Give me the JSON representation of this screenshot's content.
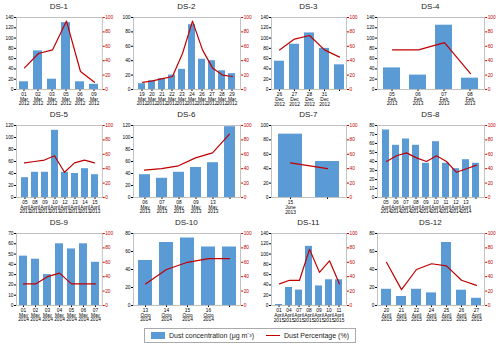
{
  "chart_data": [
    {
      "type": "bar",
      "title": "DS-1",
      "categories": [
        "01\nMar\n2012",
        "02\nMar\n2012",
        "03\nMar\n2012",
        "05\nMar\n2012",
        "06\nMar\n2012",
        "09\nMar\n2012"
      ],
      "series": [
        {
          "name": "Dust concentration (μg m⁻³)",
          "type": "bar",
          "color": "#5b9bd5",
          "values": [
            15,
            75,
            20,
            130,
            15,
            10
          ]
        },
        {
          "name": "Dust Percentage (%)",
          "type": "line",
          "color": "#c00000",
          "axis": "y2",
          "values": [
            30,
            50,
            55,
            95,
            25,
            10
          ]
        }
      ],
      "ylim": [
        0,
        140
      ],
      "yticks": [
        0,
        20,
        40,
        60,
        80,
        100,
        120,
        140
      ],
      "y2lim": [
        0,
        100
      ],
      "y2ticks": [
        0,
        20,
        40,
        60,
        80,
        100
      ],
      "grid": false,
      "legend": "bottom"
    },
    {
      "type": "bar",
      "title": "DS-2",
      "categories": [
        "19\nMar\n2012",
        "20\nMar\n2012",
        "21\nMar\n2012",
        "22\nMar\n2012",
        "23\nMar\n2012",
        "24\nMar\n2012",
        "26\nMar\n2012",
        "27\nMar\n2012",
        "28\nMar\n2012",
        "29\nMar\n2012"
      ],
      "series": [
        {
          "name": "Dust concentration (μg m⁻³)",
          "type": "bar",
          "color": "#5b9bd5",
          "values": [
            8,
            12,
            15,
            20,
            28,
            90,
            42,
            40,
            26,
            22
          ]
        },
        {
          "name": "Dust Percentage (%)",
          "type": "line",
          "color": "#c00000",
          "axis": "y2",
          "values": [
            10,
            12,
            15,
            18,
            50,
            95,
            55,
            30,
            20,
            18
          ]
        }
      ],
      "ylim": [
        0,
        100
      ],
      "yticks": [
        0,
        20,
        40,
        60,
        80,
        100
      ],
      "y2lim": [
        0,
        100
      ],
      "y2ticks": [
        0,
        20,
        40,
        60,
        80,
        100
      ],
      "grid": false,
      "legend": "bottom"
    },
    {
      "type": "bar",
      "title": "DS-3",
      "categories": [
        "26\nDec\n2012",
        "27\nDec\n2012",
        "28\nDec\n2012",
        "31\nDec\n2012",
        null
      ],
      "series": [
        {
          "name": "Dust concentration (μg m⁻³)",
          "type": "bar",
          "color": "#5b9bd5",
          "values": [
            55,
            88,
            110,
            80,
            48
          ]
        },
        {
          "name": "Dust Percentage (%)",
          "type": "line",
          "color": "#c00000",
          "axis": "y2",
          "values": [
            55,
            70,
            75,
            55,
            45
          ]
        }
      ],
      "ylim": [
        0,
        140
      ],
      "yticks": [
        0,
        20,
        40,
        60,
        80,
        100,
        120,
        140
      ],
      "y2lim": [
        0,
        100
      ],
      "y2ticks": [
        0,
        20,
        40,
        60,
        80,
        100
      ],
      "grid": false,
      "legend": "bottom"
    },
    {
      "type": "bar",
      "title": "DS-4",
      "categories": [
        "05\nFeb\n2013",
        "06\nFeb\n2013",
        "07\nFeb\n2013",
        "08\nFeb\n2013"
      ],
      "series": [
        {
          "name": "Dust concentration (μg m⁻³)",
          "type": "bar",
          "color": "#5b9bd5",
          "values": [
            42,
            28,
            125,
            22
          ]
        },
        {
          "name": "Dust Percentage (%)",
          "type": "line",
          "color": "#c00000",
          "axis": "y2",
          "values": [
            55,
            55,
            65,
            22
          ]
        }
      ],
      "ylim": [
        0,
        140
      ],
      "yticks": [
        0,
        20,
        40,
        60,
        80,
        100,
        120,
        140
      ],
      "y2lim": [
        0,
        100
      ],
      "y2ticks": [
        0,
        20,
        40,
        60,
        80,
        100
      ],
      "grid": false,
      "legend": "bottom"
    },
    {
      "type": "bar",
      "title": "DS-5",
      "categories": [
        "05\nApril\n2013",
        "08\nApril\n2013",
        "09\nApril\n2013",
        "10\nApril\n2013",
        "12\nApril\n2013",
        "13\nApril\n2013",
        "14\nApril\n2013",
        "15\nApril\n2013"
      ],
      "series": [
        {
          "name": "Dust concentration (μg m⁻³)",
          "type": "bar",
          "color": "#5b9bd5",
          "values": [
            33,
            42,
            42,
            112,
            42,
            40,
            48,
            38
          ]
        },
        {
          "name": "Dust Percentage (%)",
          "type": "line",
          "color": "#c00000",
          "axis": "y2",
          "values": [
            48,
            50,
            52,
            58,
            35,
            48,
            52,
            48
          ]
        }
      ],
      "ylim": [
        0,
        120
      ],
      "yticks": [
        0,
        20,
        40,
        60,
        80,
        100,
        120
      ],
      "y2lim": [
        0,
        100
      ],
      "y2ticks": [
        0,
        20,
        40,
        60,
        80,
        100
      ],
      "grid": false,
      "legend": "bottom"
    },
    {
      "type": "bar",
      "title": "DS-6",
      "categories": [
        "06\nMay\n2013",
        "07\nMay\n2013",
        "08\nMay\n2013",
        "09\nMay\n2013",
        "13\nMay\n2013",
        null
      ],
      "series": [
        {
          "name": "Dust concentration (μg m⁻³)",
          "type": "bar",
          "color": "#5b9bd5",
          "values": [
            38,
            32,
            42,
            50,
            58,
            118
          ]
        },
        {
          "name": "Dust Percentage (%)",
          "type": "line",
          "color": "#c00000",
          "axis": "y2",
          "values": [
            38,
            40,
            44,
            55,
            62,
            88
          ]
        }
      ],
      "ylim": [
        0,
        120
      ],
      "yticks": [
        0,
        20,
        40,
        60,
        80,
        100,
        120
      ],
      "y2lim": [
        0,
        100
      ],
      "y2ticks": [
        0,
        20,
        40,
        60,
        80,
        100
      ],
      "grid": false,
      "legend": "bottom"
    },
    {
      "type": "bar",
      "title": "DS-7",
      "categories": [
        "15\nJune\n2013",
        null
      ],
      "series": [
        {
          "name": "Dust concentration (μg m⁻³)",
          "type": "bar",
          "color": "#5b9bd5",
          "values": [
            88,
            50
          ]
        },
        {
          "name": "Dust Percentage (%)",
          "type": "line",
          "color": "#c00000",
          "axis": "y2",
          "values": [
            48,
            40
          ]
        }
      ],
      "ylim": [
        0,
        100
      ],
      "yticks": [
        0,
        20,
        40,
        60,
        80,
        100
      ],
      "y2lim": [
        0,
        100
      ],
      "y2ticks": [
        0,
        20,
        40,
        60,
        80,
        100
      ],
      "grid": false,
      "legend": "bottom"
    },
    {
      "type": "bar",
      "title": "DS-8",
      "categories": [
        "05\nApril\n2014",
        "06\nApril\n2014",
        "07\nApril\n2014",
        "08\nApril\n2014",
        "09\nApril\n2014",
        "10\nApril\n2014",
        "11\nApril\n2014",
        "12\nApril\n2014",
        "13\nApril\n2014",
        null
      ],
      "series": [
        {
          "name": "Dust concentration (μg m⁻³)",
          "type": "bar",
          "color": "#5b9bd5",
          "values": [
            75,
            58,
            65,
            58,
            38,
            62,
            38,
            32,
            42,
            38
          ]
        },
        {
          "name": "Dust Percentage (%)",
          "type": "line",
          "color": "#c00000",
          "axis": "y2",
          "values": [
            50,
            58,
            62,
            55,
            50,
            58,
            50,
            35,
            40,
            45
          ]
        }
      ],
      "ylim": [
        0,
        80
      ],
      "yticks": [
        0,
        10,
        20,
        30,
        40,
        50,
        60,
        70,
        80
      ],
      "y2lim": [
        0,
        100
      ],
      "y2ticks": [
        0,
        20,
        40,
        60,
        80,
        100
      ],
      "grid": false,
      "legend": "bottom"
    },
    {
      "type": "bar",
      "title": "DS-9",
      "categories": [
        "01\nMay\n2014",
        "02\nMay\n2014",
        "03\nMay\n2014",
        "04\nMay\n2014",
        "05\nMay\n2014",
        "06\nMay\n2014",
        "07\nMay\n2014"
      ],
      "series": [
        {
          "name": "Dust concentration (μg m⁻³)",
          "type": "bar",
          "color": "#5b9bd5",
          "values": [
            48,
            45,
            30,
            60,
            55,
            60,
            42
          ]
        },
        {
          "name": "Dust Percentage (%)",
          "type": "line",
          "color": "#c00000",
          "axis": "y2",
          "values": [
            30,
            30,
            40,
            45,
            30,
            30,
            30
          ]
        }
      ],
      "ylim": [
        0,
        70
      ],
      "yticks": [
        0,
        10,
        20,
        30,
        40,
        50,
        60,
        70
      ],
      "y2lim": [
        0,
        100
      ],
      "y2ticks": [
        0,
        20,
        40,
        60,
        80,
        100
      ],
      "grid": false,
      "legend": "bottom"
    },
    {
      "type": "bar",
      "title": "DS-10",
      "categories": [
        "13\nOcto\n2014",
        "14\nOcto\n2014",
        "15\nOcto\n2014",
        "16\nOcto\n2014",
        null
      ],
      "series": [
        {
          "name": "Dust concentration (μg m⁻³)",
          "type": "bar",
          "color": "#5b9bd5",
          "values": [
            50,
            70,
            75,
            65,
            65
          ]
        },
        {
          "name": "Dust Percentage (%)",
          "type": "line",
          "color": "#c00000",
          "axis": "y2",
          "values": [
            30,
            50,
            60,
            65,
            65
          ]
        }
      ],
      "ylim": [
        0,
        80
      ],
      "yticks": [
        0,
        20,
        40,
        60,
        80
      ],
      "y2lim": [
        0,
        100
      ],
      "y2ticks": [
        0,
        20,
        40,
        60,
        80,
        100
      ],
      "grid": false,
      "legend": "bottom"
    },
    {
      "type": "bar",
      "title": "DS-11",
      "categories": [
        "01\nApril\n2015",
        "04\nApril\n2015",
        "07\nApril\n2015",
        "08\nApril\n2015",
        "09\nApril\n2015",
        "10\nApril\n2015",
        "11\nApril\n2015"
      ],
      "series": [
        {
          "name": "Dust concentration (μg m⁻³)",
          "type": "bar",
          "color": "#5b9bd5",
          "values": [
            2,
            35,
            30,
            115,
            38,
            50,
            50
          ]
        },
        {
          "name": "Dust Percentage (%)",
          "type": "line",
          "color": "#c00000",
          "axis": "y2",
          "values": [
            30,
            35,
            35,
            78,
            46,
            62,
            30
          ]
        }
      ],
      "ylim": [
        0,
        140
      ],
      "yticks": [
        0,
        20,
        40,
        60,
        80,
        100,
        120,
        140
      ],
      "y2lim": [
        0,
        100
      ],
      "y2ticks": [
        0,
        20,
        40,
        60,
        80,
        100
      ],
      "grid": false,
      "legend": "bottom"
    },
    {
      "type": "bar",
      "title": "DS-12",
      "categories": [
        "20\nApril\n2015",
        "21\nApril\n2015",
        "22\nApril\n2015",
        "24\nApril\n2015",
        "25\nApril\n2015",
        "26\nApril\n2015",
        "27\nApril\n2015"
      ],
      "series": [
        {
          "name": "Dust concentration (μg m⁻³)",
          "type": "bar",
          "color": "#5b9bd5",
          "values": [
            18,
            10,
            18,
            14,
            70,
            17,
            8
          ]
        },
        {
          "name": "Dust Percentage (%)",
          "type": "line",
          "color": "#c00000",
          "axis": "y2",
          "values": [
            60,
            22,
            50,
            58,
            55,
            35,
            28
          ]
        }
      ],
      "ylim": [
        0,
        80
      ],
      "yticks": [
        0,
        20,
        40,
        60,
        80
      ],
      "y2lim": [
        0,
        100
      ],
      "y2ticks": [
        0,
        20,
        40,
        60,
        80,
        100
      ],
      "grid": false,
      "legend": "bottom"
    }
  ]
}
